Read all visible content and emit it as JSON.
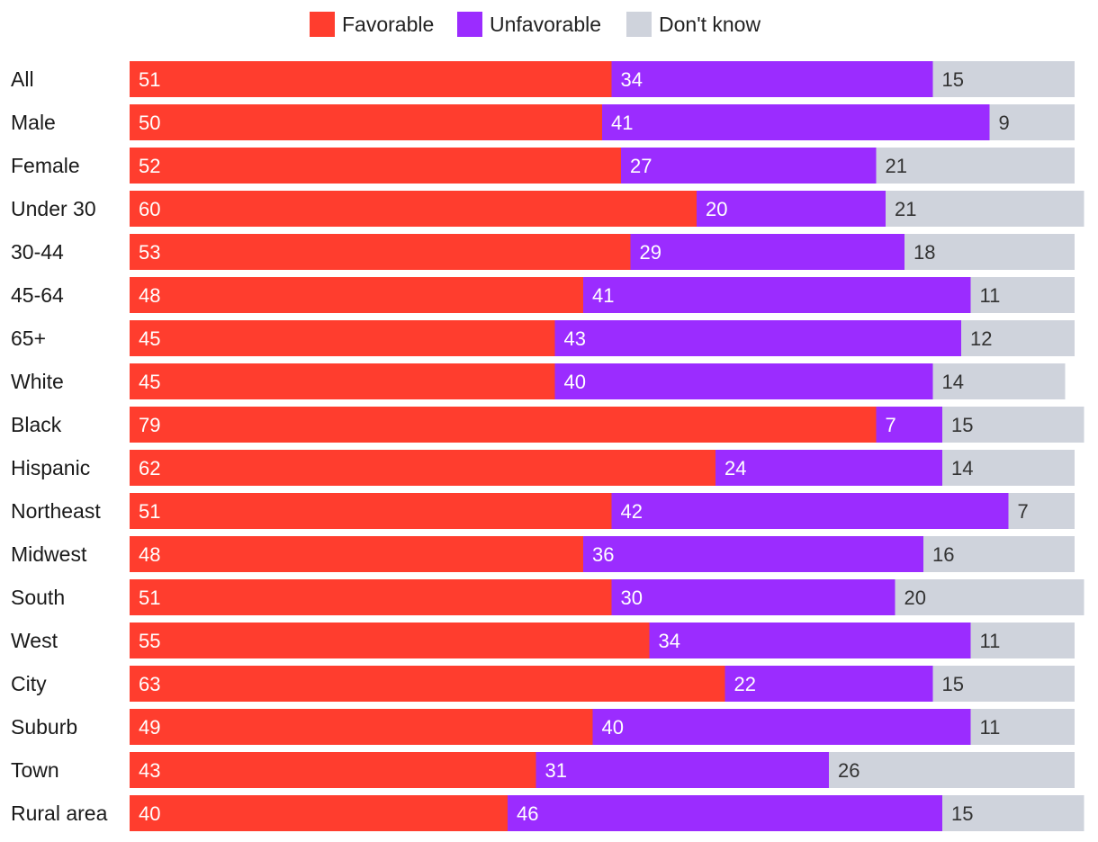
{
  "legend": [
    {
      "label": "Favorable",
      "color": "#ff3d2e"
    },
    {
      "label": "Unfavorable",
      "color": "#9b2cff"
    },
    {
      "label": "Don't know",
      "color": "#cfd3dc"
    }
  ],
  "chart_data": {
    "type": "bar",
    "orientation": "horizontal",
    "stacked": true,
    "title": "",
    "xlabel": "",
    "ylabel": "",
    "xlim": [
      0,
      100
    ],
    "grid": false,
    "legend_position": "top-center",
    "categories": [
      "All",
      "Male",
      "Female",
      "Under 30",
      "30-44",
      "45-64",
      "65+",
      "White",
      "Black",
      "Hispanic",
      "Northeast",
      "Midwest",
      "South",
      "West",
      "City",
      "Suburb",
      "Town",
      "Rural area"
    ],
    "series": [
      {
        "name": "Favorable",
        "color": "#ff3d2e",
        "label_color": "#ffffff",
        "values": [
          51,
          50,
          52,
          60,
          53,
          48,
          45,
          45,
          79,
          62,
          51,
          48,
          51,
          55,
          63,
          49,
          43,
          40
        ]
      },
      {
        "name": "Unfavorable",
        "color": "#9b2cff",
        "label_color": "#ffffff",
        "values": [
          34,
          41,
          27,
          20,
          29,
          41,
          43,
          40,
          7,
          24,
          42,
          36,
          30,
          34,
          22,
          40,
          31,
          46
        ]
      },
      {
        "name": "Don't know",
        "color": "#cfd3dc",
        "label_color": "#333333",
        "values": [
          15,
          9,
          21,
          21,
          18,
          11,
          12,
          14,
          15,
          14,
          7,
          16,
          20,
          11,
          15,
          11,
          26,
          15
        ]
      }
    ]
  }
}
